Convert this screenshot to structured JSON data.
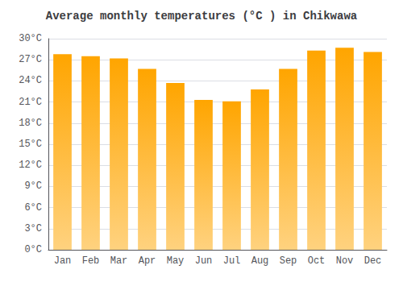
{
  "chart_data": {
    "type": "bar",
    "title": "Average monthly temperatures (°C ) in Chikwawa",
    "categories": [
      "Jan",
      "Feb",
      "Mar",
      "Apr",
      "May",
      "Jun",
      "Jul",
      "Aug",
      "Sep",
      "Oct",
      "Nov",
      "Dec"
    ],
    "values": [
      27.8,
      27.5,
      27.2,
      25.7,
      23.7,
      21.3,
      21.1,
      22.8,
      25.7,
      28.3,
      28.7,
      28.1
    ],
    "color": "#FFA500",
    "ylim": [
      0,
      30
    ],
    "yticks": [
      {
        "value": 0,
        "label": "0°C"
      },
      {
        "value": 3,
        "label": "3°C"
      },
      {
        "value": 6,
        "label": "6°C"
      },
      {
        "value": 9,
        "label": "9°C"
      },
      {
        "value": 12,
        "label": "12°C"
      },
      {
        "value": 15,
        "label": "15°C"
      },
      {
        "value": 18,
        "label": "18°C"
      },
      {
        "value": 21,
        "label": "21°C"
      },
      {
        "value": 24,
        "label": "24°C"
      },
      {
        "value": 27,
        "label": "27°C"
      },
      {
        "value": 30,
        "label": "30°C"
      }
    ],
    "grid": true
  }
}
